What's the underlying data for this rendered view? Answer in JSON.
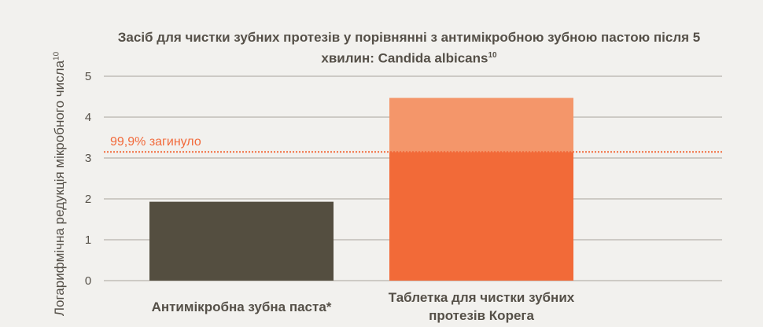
{
  "chart_data": {
    "type": "bar",
    "title": "Засіб для чистки зубних протезів у порівнянні з антимікробною зубною пастою після 5 хвилин: Candida albicans",
    "title_superscript": "10",
    "ylabel": "Логарифмічна редукція мікробного числа",
    "ylabel_superscript": "10",
    "ylim": [
      0,
      5
    ],
    "yticks": [
      "0",
      "1",
      "2",
      "3",
      "4",
      "5"
    ],
    "grid": true,
    "categories": [
      "Антимікробна зубна паста*",
      "Таблетка для чистки зубних протезів Корега"
    ],
    "values": [
      1.93,
      4.47
    ],
    "threshold": {
      "value": 3.15,
      "label": "99,9% загинуло"
    }
  },
  "colors": {
    "bar_paste": "#544e40",
    "bar_tablet_below": "#f26a38",
    "bar_tablet_above": "#f4966a",
    "threshold": "#f26a3b",
    "gridline": "#a8a49c",
    "text": "#555048"
  }
}
